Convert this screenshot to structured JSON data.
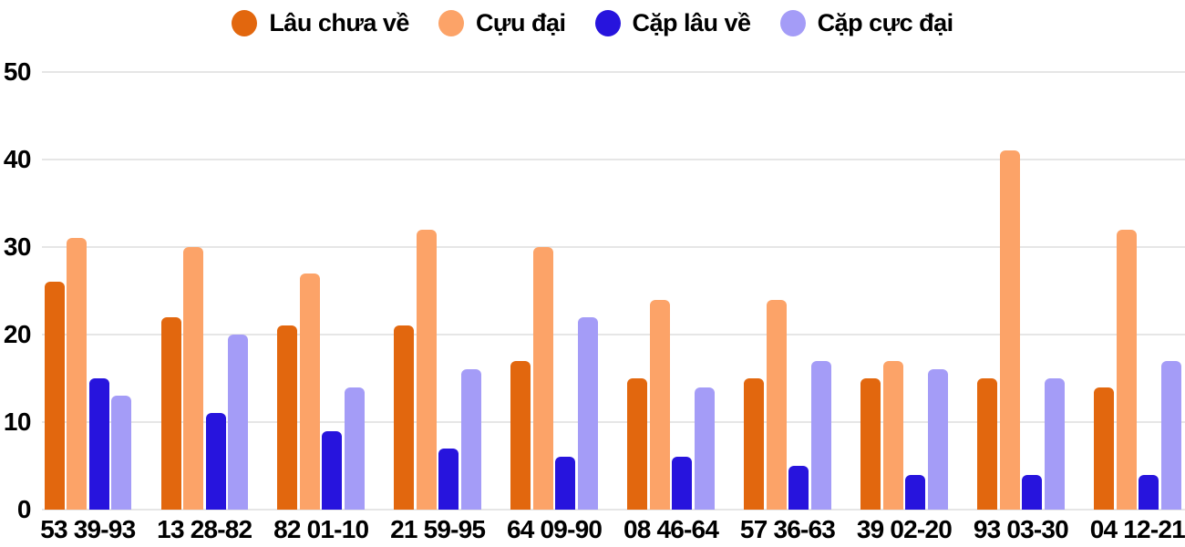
{
  "colors": {
    "background": "#ffffff",
    "grid": "#e6e6e6",
    "text": "#000000"
  },
  "chart_data": {
    "type": "bar",
    "title": "",
    "xlabel": "",
    "ylabel": "",
    "ylim": [
      0,
      50
    ],
    "ytick_step": 10,
    "y_axis_labels": [
      "0",
      "10",
      "20",
      "30",
      "40",
      "50"
    ],
    "grid": true,
    "legend_position": "top",
    "categories": [
      "53 39-93",
      "13 28-82",
      "82 01-10",
      "21 59-95",
      "64 09-90",
      "08 46-64",
      "57 36-63",
      "39 02-20",
      "93 03-30",
      "04 12-21"
    ],
    "series": [
      {
        "name": "Lâu chưa về",
        "color": "#e2670e",
        "values": [
          26,
          22,
          21,
          21,
          17,
          15,
          15,
          15,
          15,
          14
        ]
      },
      {
        "name": "Cựu đại",
        "color": "#fca368",
        "values": [
          31,
          30,
          27,
          32,
          30,
          24,
          24,
          17,
          41,
          32
        ]
      },
      {
        "name": "Cặp lâu về",
        "color": "#2714dd",
        "values": [
          15,
          11,
          9,
          7,
          6,
          6,
          5,
          4,
          4,
          4
        ]
      },
      {
        "name": "Cặp cực đại",
        "color": "#a49cf7",
        "values": [
          13,
          20,
          14,
          16,
          22,
          14,
          17,
          16,
          15,
          17
        ]
      }
    ]
  }
}
